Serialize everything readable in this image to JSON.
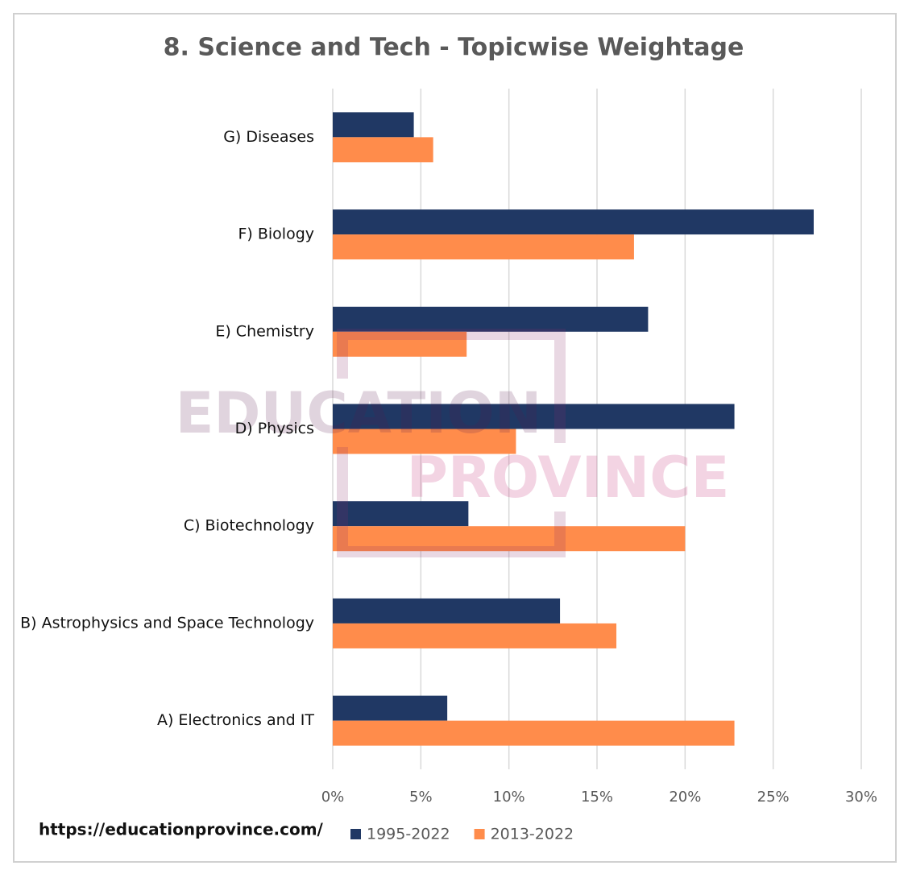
{
  "chart_data": {
    "type": "bar",
    "orientation": "horizontal",
    "title": "8. Science and Tech - Topicwise Weightage",
    "categories": [
      "G) Diseases",
      "F) Biology",
      "E) Chemistry",
      "D) Physics",
      "C) Biotechnology",
      "B) Astrophysics and Space Technology",
      "A) Electronics and IT"
    ],
    "series": [
      {
        "name": "1995-2022",
        "color": "#203864",
        "values": [
          4.6,
          27.3,
          17.9,
          22.8,
          7.7,
          12.9,
          6.5
        ]
      },
      {
        "name": "2013-2022",
        "color": "#ff8c4b",
        "values": [
          5.7,
          17.1,
          7.6,
          10.4,
          20.0,
          16.1,
          22.8
        ]
      }
    ],
    "xlim": [
      0,
      30
    ],
    "xticks": [
      {
        "value": 0,
        "label": "0%"
      },
      {
        "value": 5,
        "label": "5%"
      },
      {
        "value": 10,
        "label": "10%"
      },
      {
        "value": 15,
        "label": "15%"
      },
      {
        "value": 20,
        "label": "20%"
      },
      {
        "value": 25,
        "label": "25%"
      },
      {
        "value": 30,
        "label": "30%"
      }
    ],
    "grid": true,
    "legend": "bottom",
    "watermark": [
      "EDUCATION",
      "PROVINCE"
    ],
    "source": "https://educationprovince.com/"
  }
}
